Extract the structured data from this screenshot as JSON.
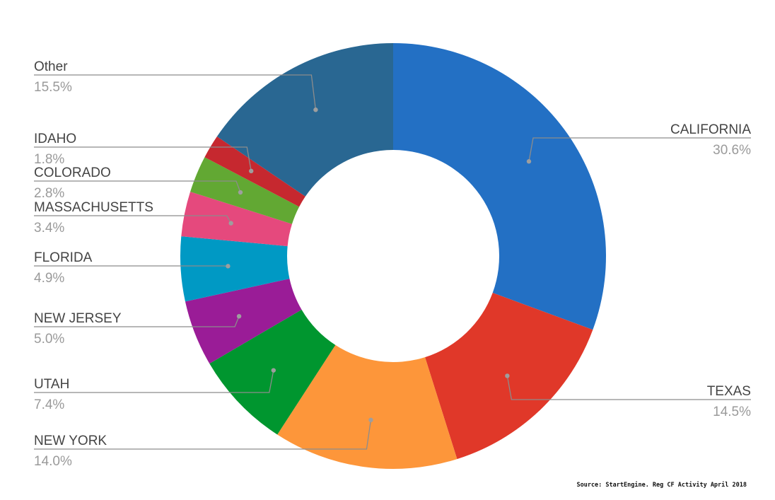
{
  "chart_data": {
    "type": "pie",
    "style": "donut",
    "slices": [
      {
        "label": "CALIFORNIA",
        "value": 30.6,
        "value_text": "30.6%",
        "color": "#2370c4"
      },
      {
        "label": "TEXAS",
        "value": 14.5,
        "value_text": "14.5%",
        "color": "#e03829"
      },
      {
        "label": "NEW YORK",
        "value": 14.0,
        "value_text": "14.0%",
        "color": "#fd963a"
      },
      {
        "label": "UTAH",
        "value": 7.4,
        "value_text": "7.4%",
        "color": "#00962f"
      },
      {
        "label": "NEW JERSEY",
        "value": 5.0,
        "value_text": "5.0%",
        "color": "#9a1c97"
      },
      {
        "label": "FLORIDA",
        "value": 4.9,
        "value_text": "4.9%",
        "color": "#0099c4"
      },
      {
        "label": "MASSACHUSETTS",
        "value": 3.4,
        "value_text": "3.4%",
        "color": "#e5497d"
      },
      {
        "label": "COLORADO",
        "value": 2.8,
        "value_text": "2.8%",
        "color": "#62a833"
      },
      {
        "label": "IDAHO",
        "value": 1.8,
        "value_text": "1.8%",
        "color": "#c6282f"
      },
      {
        "label": "Other",
        "value": 15.5,
        "value_text": "15.5%",
        "color": "#296792"
      }
    ],
    "source": "Source: StartEngine. Reg CF Activity April 2018"
  }
}
